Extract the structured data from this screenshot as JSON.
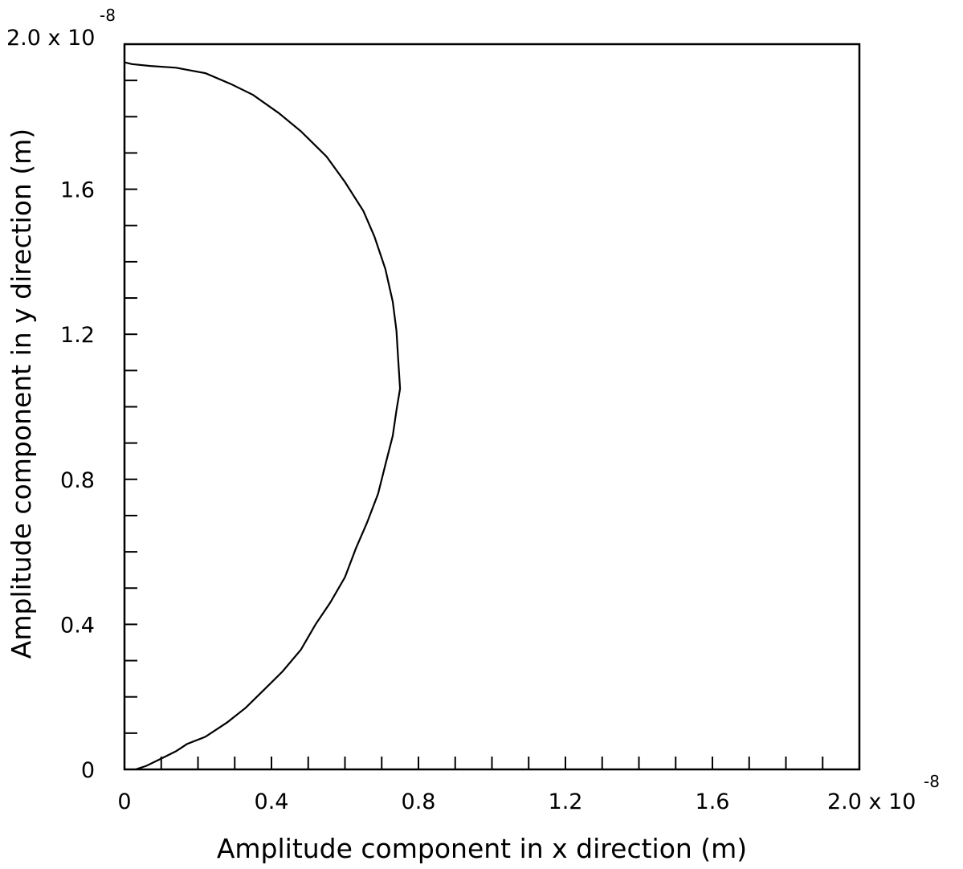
{
  "chart_data": {
    "type": "line",
    "title": "",
    "xlabel": "Amplitude component in x direction (m)",
    "ylabel": "Amplitude component in y direction (m)",
    "xlim": [
      0,
      2.0
    ],
    "ylim": [
      0,
      2.0
    ],
    "scale_multiplier": "x10^-8",
    "grid": false,
    "legend": "none",
    "x_ticks": [
      "0",
      "0.4",
      "0.8",
      "1.2",
      "1.6",
      "2.0"
    ],
    "y_ticks": [
      "0",
      "0.4",
      "0.8",
      "1.2",
      "1.6",
      "2.0"
    ],
    "axis_multiplier": {
      "base": "2.0 x 10",
      "exponent": "-8"
    },
    "x_minor_tick_step": 0.1,
    "y_minor_tick_step": 0.1,
    "series": [
      {
        "x": [
          0.03,
          0.06,
          0.1,
          0.14,
          0.17,
          0.22,
          0.28,
          0.33,
          0.38,
          0.43,
          0.48,
          0.52,
          0.56,
          0.6,
          0.63,
          0.66,
          0.69,
          0.71,
          0.73,
          0.74,
          0.75,
          0.745,
          0.74,
          0.73,
          0.71,
          0.68,
          0.65,
          0.6,
          0.55,
          0.48,
          0.42,
          0.35,
          0.29,
          0.22,
          0.14,
          0.07,
          0.02,
          0.0
        ],
        "y": [
          0.0,
          0.01,
          0.03,
          0.05,
          0.07,
          0.09,
          0.13,
          0.17,
          0.22,
          0.27,
          0.33,
          0.4,
          0.46,
          0.53,
          0.61,
          0.68,
          0.76,
          0.84,
          0.92,
          0.99,
          1.05,
          1.13,
          1.21,
          1.29,
          1.38,
          1.47,
          1.54,
          1.62,
          1.69,
          1.76,
          1.81,
          1.86,
          1.89,
          1.92,
          1.935,
          1.94,
          1.945,
          1.95
        ],
        "color": "#000000"
      }
    ]
  }
}
